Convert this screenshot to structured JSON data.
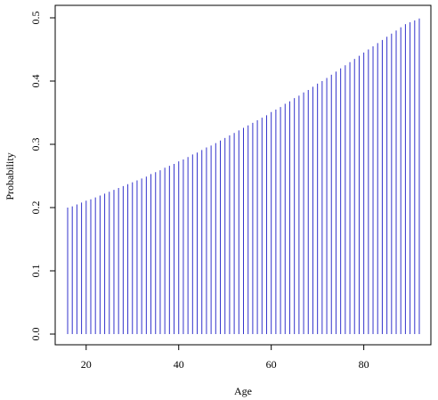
{
  "chart_data": {
    "type": "bar",
    "style": "vertical probability lines (type h)",
    "title": "",
    "xlabel": "Age",
    "ylabel": "Probability",
    "xlim": [
      15,
      93
    ],
    "ylim": [
      0,
      0.5
    ],
    "x_ticks": [
      20,
      40,
      60,
      80
    ],
    "y_ticks": [
      0.0,
      0.1,
      0.2,
      0.3,
      0.4,
      0.5
    ],
    "line_color": "#3333cc",
    "x": [
      16,
      17,
      18,
      19,
      20,
      21,
      22,
      23,
      24,
      25,
      26,
      27,
      28,
      29,
      30,
      31,
      32,
      33,
      34,
      35,
      36,
      37,
      38,
      39,
      40,
      41,
      42,
      43,
      44,
      45,
      46,
      47,
      48,
      49,
      50,
      51,
      52,
      53,
      54,
      55,
      56,
      57,
      58,
      59,
      60,
      61,
      62,
      63,
      64,
      65,
      66,
      67,
      68,
      69,
      70,
      71,
      72,
      73,
      74,
      75,
      76,
      77,
      78,
      79,
      80,
      81,
      82,
      83,
      84,
      85,
      86,
      87,
      88,
      89,
      90,
      91,
      92
    ],
    "values": [
      0.2,
      0.202,
      0.205,
      0.208,
      0.211,
      0.213,
      0.216,
      0.219,
      0.222,
      0.225,
      0.228,
      0.231,
      0.234,
      0.237,
      0.24,
      0.243,
      0.246,
      0.249,
      0.253,
      0.256,
      0.259,
      0.263,
      0.266,
      0.269,
      0.273,
      0.276,
      0.28,
      0.284,
      0.287,
      0.291,
      0.295,
      0.298,
      0.302,
      0.306,
      0.31,
      0.314,
      0.318,
      0.322,
      0.326,
      0.33,
      0.334,
      0.338,
      0.342,
      0.346,
      0.351,
      0.355,
      0.359,
      0.364,
      0.368,
      0.373,
      0.377,
      0.382,
      0.386,
      0.391,
      0.396,
      0.4,
      0.405,
      0.41,
      0.415,
      0.42,
      0.425,
      0.43,
      0.435,
      0.44,
      0.445,
      0.45,
      0.455,
      0.46,
      0.465,
      0.47,
      0.475,
      0.48,
      0.485,
      0.49,
      0.493,
      0.496,
      0.499
    ]
  }
}
